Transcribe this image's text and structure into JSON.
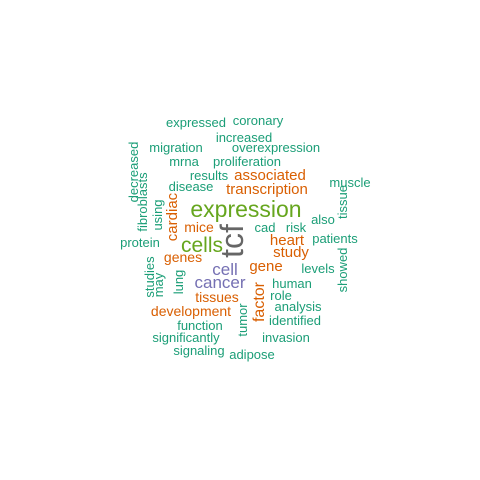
{
  "words": [
    {
      "text": "expressed",
      "color": "#1b9e77"
    },
    {
      "text": "coronary",
      "color": "#1b9e77"
    },
    {
      "text": "increased",
      "color": "#1b9e77"
    },
    {
      "text": "overexpression",
      "color": "#1b9e77"
    },
    {
      "text": "migration",
      "color": "#1b9e77"
    },
    {
      "text": "decreased",
      "color": "#1b9e77"
    },
    {
      "text": "mrna",
      "color": "#1b9e77"
    },
    {
      "text": "proliferation",
      "color": "#1b9e77"
    },
    {
      "text": "results",
      "color": "#1b9e77"
    },
    {
      "text": "associated",
      "color": "#d95f02"
    },
    {
      "text": "fibroblasts",
      "color": "#1b9e77"
    },
    {
      "text": "disease",
      "color": "#1b9e77"
    },
    {
      "text": "transcription",
      "color": "#d95f02"
    },
    {
      "text": "muscle",
      "color": "#1b9e77"
    },
    {
      "text": "expression",
      "color": "#66a61e"
    },
    {
      "text": "using",
      "color": "#1b9e77"
    },
    {
      "text": "cardiac",
      "color": "#d95f02"
    },
    {
      "text": "also",
      "color": "#1b9e77"
    },
    {
      "text": "tissue",
      "color": "#1b9e77"
    },
    {
      "text": "mice",
      "color": "#d95f02"
    },
    {
      "text": "cad",
      "color": "#1b9e77"
    },
    {
      "text": "risk",
      "color": "#1b9e77"
    },
    {
      "text": "tcf",
      "color": "#666666"
    },
    {
      "text": "protein",
      "color": "#1b9e77"
    },
    {
      "text": "cells",
      "color": "#66a61e"
    },
    {
      "text": "heart",
      "color": "#d95f02"
    },
    {
      "text": "patients",
      "color": "#1b9e77"
    },
    {
      "text": "study",
      "color": "#d95f02"
    },
    {
      "text": "genes",
      "color": "#d95f02"
    },
    {
      "text": "studies",
      "color": "#1b9e77"
    },
    {
      "text": "cell",
      "color": "#7570b3"
    },
    {
      "text": "gene",
      "color": "#d95f02"
    },
    {
      "text": "levels",
      "color": "#1b9e77"
    },
    {
      "text": "may",
      "color": "#1b9e77"
    },
    {
      "text": "lung",
      "color": "#1b9e77"
    },
    {
      "text": "showed",
      "color": "#1b9e77"
    },
    {
      "text": "cancer",
      "color": "#7570b3"
    },
    {
      "text": "human",
      "color": "#1b9e77"
    },
    {
      "text": "factor",
      "color": "#d95f02"
    },
    {
      "text": "tissues",
      "color": "#d95f02"
    },
    {
      "text": "role",
      "color": "#1b9e77"
    },
    {
      "text": "analysis",
      "color": "#1b9e77"
    },
    {
      "text": "development",
      "color": "#d95f02"
    },
    {
      "text": "tumor",
      "color": "#1b9e77"
    },
    {
      "text": "identified",
      "color": "#1b9e77"
    },
    {
      "text": "function",
      "color": "#1b9e77"
    },
    {
      "text": "significantly",
      "color": "#1b9e77"
    },
    {
      "text": "invasion",
      "color": "#1b9e77"
    },
    {
      "text": "signaling",
      "color": "#1b9e77"
    },
    {
      "text": "adipose",
      "color": "#1b9e77"
    }
  ]
}
